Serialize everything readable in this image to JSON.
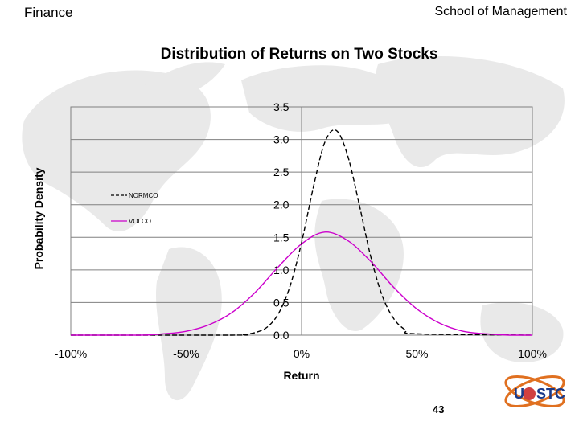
{
  "header": {
    "left": "Finance",
    "right": "School of Management"
  },
  "page_number": "43",
  "logo": {
    "text_left": "U",
    "text_right": "STC"
  },
  "chart_data": {
    "type": "line",
    "title": "Distribution of Returns on Two Stocks",
    "xlabel": "Return",
    "ylabel": "Probability Density",
    "xlim": [
      -1.0,
      1.0
    ],
    "ylim": [
      0,
      3.5
    ],
    "x_ticks": [
      "-100%",
      "-50%",
      "0%",
      "50%",
      "100%"
    ],
    "y_ticks": [
      "0.0",
      "0.5",
      "1.0",
      "1.5",
      "2.0",
      "2.5",
      "3.0",
      "3.5"
    ],
    "grid": true,
    "legend_position": "left",
    "series": [
      {
        "name": "NORMCO",
        "color": "#000000",
        "style": "dashed",
        "x": [
          -1.0,
          -0.3,
          -0.25,
          -0.2,
          -0.15,
          -0.1,
          -0.05,
          0.0,
          0.05,
          0.1,
          0.15,
          0.2,
          0.25,
          0.3,
          0.35,
          0.4,
          0.45,
          0.5,
          1.0
        ],
        "y": [
          0.0,
          0.0,
          0.01,
          0.04,
          0.12,
          0.33,
          0.75,
          1.42,
          2.25,
          2.95,
          3.14,
          2.75,
          2.0,
          1.2,
          0.6,
          0.25,
          0.08,
          0.02,
          0.0
        ]
      },
      {
        "name": "VOLCO",
        "color": "#cc00cc",
        "style": "solid",
        "x": [
          -1.0,
          -0.7,
          -0.6,
          -0.5,
          -0.4,
          -0.3,
          -0.2,
          -0.1,
          0.0,
          0.1,
          0.2,
          0.3,
          0.4,
          0.5,
          0.6,
          0.7,
          0.8,
          0.9,
          1.0
        ],
        "y": [
          0.0,
          0.0,
          0.02,
          0.06,
          0.16,
          0.35,
          0.66,
          1.05,
          1.4,
          1.58,
          1.45,
          1.13,
          0.73,
          0.4,
          0.18,
          0.06,
          0.02,
          0.0,
          0.0
        ]
      }
    ]
  }
}
